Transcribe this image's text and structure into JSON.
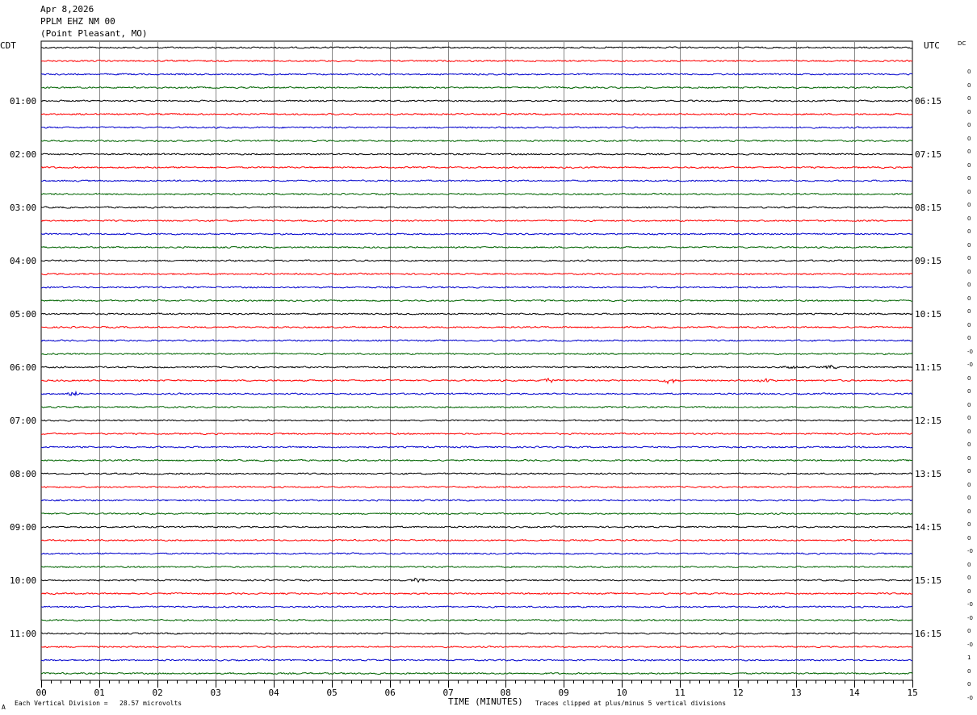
{
  "header": {
    "date": "Apr 8,2026",
    "station": "PPLM EHZ NM 00",
    "location": "(Point Pleasant, MO)"
  },
  "left_tz": "CDT",
  "right_tz": "UTC",
  "dc_label": "DC",
  "footer": {
    "corner_mark": "A",
    "scale_note": "Each Vertical Division =   28.57 microvolts",
    "x_title": "TIME (MINUTES)",
    "clip_note": "Traces clipped at plus/minus 5 vertical divisions"
  },
  "chart_data": {
    "type": "line",
    "title": "Apr 8,2026 PPLM EHZ NM 00 (Point Pleasant, MO)",
    "xlabel": "TIME (MINUTES)",
    "x_range": [
      0,
      15
    ],
    "x_ticks": [
      "00",
      "01",
      "02",
      "03",
      "04",
      "05",
      "06",
      "07",
      "08",
      "09",
      "10",
      "11",
      "12",
      "13",
      "14",
      "15"
    ],
    "trace_count": 48,
    "trace_colors": [
      "#000000",
      "#ff0000",
      "#0000cc",
      "#006400"
    ],
    "left_time_labels": [
      "01:00",
      "02:00",
      "03:00",
      "04:00",
      "05:00",
      "06:00",
      "07:00",
      "08:00",
      "09:00",
      "10:00",
      "11:00"
    ],
    "right_time_labels": [
      "06:15",
      "07:15",
      "08:15",
      "09:15",
      "10:15",
      "11:15",
      "12:15",
      "13:15",
      "14:15",
      "15:15",
      "16:15"
    ],
    "dc_offsets": [
      "0",
      "0",
      "0",
      "0",
      "0",
      "0",
      "0",
      "0",
      "0",
      "0",
      "0",
      "0",
      "0",
      "0",
      "0",
      "0",
      "0",
      "0",
      "0",
      "0",
      "0",
      "-0",
      "-0",
      "0",
      "0",
      "0",
      "0",
      "0",
      "0",
      "0",
      "0",
      "0",
      "0",
      "0",
      "0",
      "0",
      "-0",
      "0",
      "0",
      "0",
      "-0",
      "-0",
      "0",
      "-0",
      "1",
      "0",
      "0",
      "-0"
    ],
    "events": [
      {
        "trace": 24,
        "minute": 12.9,
        "amp": 2.5
      },
      {
        "trace": 24,
        "minute": 13.6,
        "amp": 2
      },
      {
        "trace": 25,
        "minute": 8.75,
        "amp": 3
      },
      {
        "trace": 25,
        "minute": 10.8,
        "amp": 3.5
      },
      {
        "trace": 25,
        "minute": 12.5,
        "amp": 2.5
      },
      {
        "trace": 26,
        "minute": 0.55,
        "amp": 2.5
      },
      {
        "trace": 40,
        "minute": 6.5,
        "amp": 3
      }
    ]
  }
}
